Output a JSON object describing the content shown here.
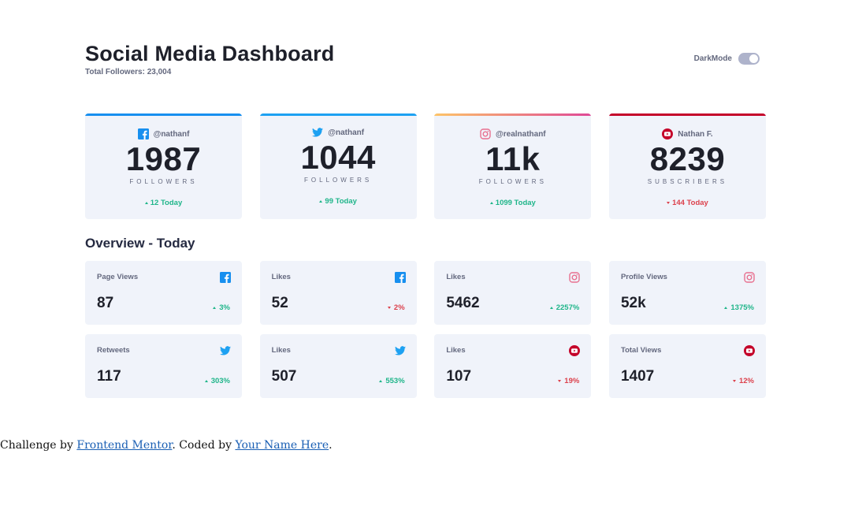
{
  "header": {
    "title": "Social Media Dashboard",
    "subtitle": "Total Followers: 23,004",
    "toggle_label": "DarkMode"
  },
  "colors": {
    "facebook": "#178fef",
    "twitter": "#1da1f2",
    "instagram_start": "#fdc468",
    "instagram_end": "#df4996",
    "youtube": "#c4032a",
    "up": "#1eb589",
    "down": "#dc414c"
  },
  "cards": [
    {
      "platform": "facebook",
      "icon": "facebook-icon",
      "handle": "@nathanf",
      "count": "1987",
      "unit": "FOLLOWERS",
      "today": "12 Today",
      "trend": "up"
    },
    {
      "platform": "twitter",
      "icon": "twitter-icon",
      "handle": "@nathanf",
      "count": "1044",
      "unit": "FOLLOWERS",
      "today": "99 Today",
      "trend": "up"
    },
    {
      "platform": "instagram",
      "icon": "instagram-icon",
      "handle": "@realnathanf",
      "count": "11k",
      "unit": "FOLLOWERS",
      "today": "1099 Today",
      "trend": "up"
    },
    {
      "platform": "youtube",
      "icon": "youtube-icon",
      "handle": "Nathan F.",
      "count": "8239",
      "unit": "SUBSCRIBERS",
      "today": "144 Today",
      "trend": "down"
    }
  ],
  "overview": {
    "title": "Overview - Today",
    "items": [
      {
        "label": "Page Views",
        "icon": "facebook-icon",
        "value": "87",
        "percent": "3%",
        "trend": "up"
      },
      {
        "label": "Likes",
        "icon": "facebook-icon",
        "value": "52",
        "percent": "2%",
        "trend": "down"
      },
      {
        "label": "Likes",
        "icon": "instagram-icon",
        "value": "5462",
        "percent": "2257%",
        "trend": "up"
      },
      {
        "label": "Profile Views",
        "icon": "instagram-icon",
        "value": "52k",
        "percent": "1375%",
        "trend": "up"
      },
      {
        "label": "Retweets",
        "icon": "twitter-icon",
        "value": "117",
        "percent": "303%",
        "trend": "up"
      },
      {
        "label": "Likes",
        "icon": "twitter-icon",
        "value": "507",
        "percent": "553%",
        "trend": "up"
      },
      {
        "label": "Likes",
        "icon": "youtube-icon",
        "value": "107",
        "percent": "19%",
        "trend": "down"
      },
      {
        "label": "Total Views",
        "icon": "youtube-icon",
        "value": "1407",
        "percent": "12%",
        "trend": "down"
      }
    ]
  },
  "footer": {
    "prefix": "Challenge by ",
    "link1": "Frontend Mentor",
    "middle": ". Coded by ",
    "link2": "Your Name Here",
    "suffix": "."
  }
}
